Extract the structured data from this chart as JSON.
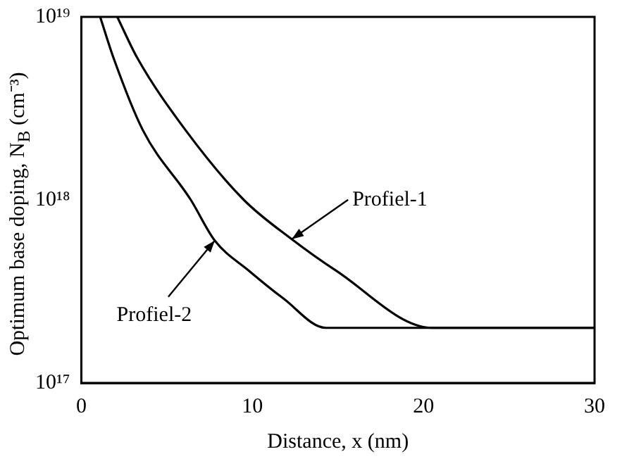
{
  "chart_data": {
    "type": "line",
    "xlabel": "Distance, x (nm)",
    "ylabel": "Optimum base doping, N$_{B}$ (cm⁻³)",
    "log": "y",
    "xlim": [
      0,
      30
    ],
    "xticks": [
      0,
      10,
      20,
      30
    ],
    "ylim": [
      1e+17,
      1e+19
    ],
    "yticks": [
      {
        "value": 1e+17,
        "label": "10¹⁷"
      },
      {
        "value": 1e+18,
        "label": "10¹⁸"
      },
      {
        "value": 1e+19,
        "label": "10¹⁹"
      }
    ],
    "grid": false,
    "legend": false,
    "marker": "none",
    "line_style": "solid",
    "series": [
      {
        "color": "#000000",
        "x": [
          2.1,
          3.3,
          6.1,
          9.5,
          12.3,
          14.9,
          20.5,
          30
        ],
        "values": [
          1e+19,
          5.9e+18,
          2.4e+18,
          1e+18,
          6.1e+17,
          4.1e+17,
          2e+17,
          2e+17
        ]
      },
      {
        "color": "#000000",
        "x": [
          1.1,
          1.9,
          3.6,
          6.4,
          7.8,
          9.8,
          11.8,
          14.3,
          30
        ],
        "values": [
          1e+19,
          5.9e+18,
          2.4e+18,
          1e+18,
          6e+17,
          4.1e+17,
          2.9e+17,
          2e+17,
          2e+17
        ]
      }
    ],
    "annotations": [
      {
        "text": "Profiel-1",
        "x": 12.3,
        "y": 6.1e+17
      },
      {
        "text": "Profiel-2",
        "x": 7.8,
        "y": 6e+17
      }
    ]
  }
}
